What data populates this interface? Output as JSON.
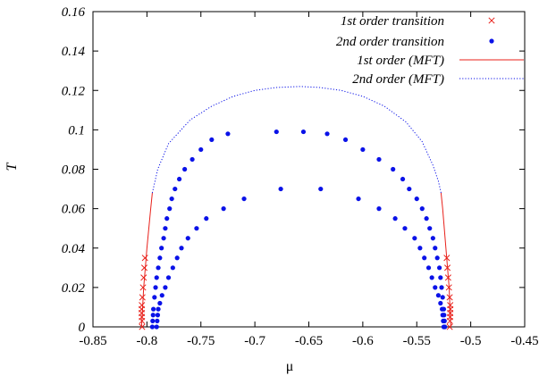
{
  "chart_data": {
    "type": "scatter",
    "xlabel": "μ",
    "ylabel": "T",
    "xlim": [
      -0.85,
      -0.45
    ],
    "ylim": [
      0,
      0.16
    ],
    "xticks": [
      -0.85,
      -0.8,
      -0.75,
      -0.7,
      -0.65,
      -0.6,
      -0.55,
      -0.5,
      -0.45
    ],
    "xtick_labels": [
      "-0.85",
      "-0.8",
      "-0.75",
      "-0.7",
      "-0.65",
      "-0.6",
      "-0.55",
      "-0.5",
      "-0.45"
    ],
    "yticks": [
      0,
      0.02,
      0.04,
      0.06,
      0.08,
      0.1,
      0.12,
      0.14,
      0.16
    ],
    "ytick_labels": [
      "0",
      "0.02",
      "0.04",
      "0.06",
      "0.08",
      "0.1",
      "0.12",
      "0.14",
      "0.16"
    ],
    "legend_position": "top-right",
    "series": [
      {
        "name": "1st order transition",
        "kind": "points",
        "marker": "x",
        "color": "#e8201a",
        "points": [
          [
            -0.8045,
            0.0
          ],
          [
            -0.8046,
            0.003
          ],
          [
            -0.8047,
            0.005
          ],
          [
            -0.8048,
            0.007
          ],
          [
            -0.8049,
            0.009
          ],
          [
            -0.8047,
            0.011
          ],
          [
            -0.8042,
            0.015
          ],
          [
            -0.8036,
            0.02
          ],
          [
            -0.803,
            0.025
          ],
          [
            -0.8024,
            0.03
          ],
          [
            -0.8018,
            0.035
          ],
          [
            -0.5195,
            0.0
          ],
          [
            -0.5193,
            0.003
          ],
          [
            -0.5191,
            0.005
          ],
          [
            -0.519,
            0.007
          ],
          [
            -0.5189,
            0.009
          ],
          [
            -0.519,
            0.011
          ],
          [
            -0.5195,
            0.015
          ],
          [
            -0.5202,
            0.02
          ],
          [
            -0.5209,
            0.025
          ],
          [
            -0.5216,
            0.03
          ],
          [
            -0.5222,
            0.035
          ]
        ]
      },
      {
        "name": "2nd order transition",
        "kind": "points",
        "marker": "circle",
        "color": "#0a12e8",
        "points": [
          [
            -0.795,
            0.0
          ],
          [
            -0.7947,
            0.003
          ],
          [
            -0.7943,
            0.006
          ],
          [
            -0.794,
            0.009
          ],
          [
            -0.793,
            0.015
          ],
          [
            -0.792,
            0.02
          ],
          [
            -0.791,
            0.025
          ],
          [
            -0.7895,
            0.03
          ],
          [
            -0.788,
            0.035
          ],
          [
            -0.7865,
            0.04
          ],
          [
            -0.7845,
            0.045
          ],
          [
            -0.783,
            0.05
          ],
          [
            -0.7815,
            0.055
          ],
          [
            -0.779,
            0.06
          ],
          [
            -0.777,
            0.065
          ],
          [
            -0.774,
            0.07
          ],
          [
            -0.77,
            0.075
          ],
          [
            -0.765,
            0.08
          ],
          [
            -0.758,
            0.085
          ],
          [
            -0.75,
            0.09
          ],
          [
            -0.74,
            0.095
          ],
          [
            -0.725,
            0.098
          ],
          [
            -0.68,
            0.099
          ],
          [
            -0.655,
            0.099
          ],
          [
            -0.633,
            0.098
          ],
          [
            -0.616,
            0.095
          ],
          [
            -0.6,
            0.09
          ],
          [
            -0.585,
            0.085
          ],
          [
            -0.572,
            0.08
          ],
          [
            -0.563,
            0.075
          ],
          [
            -0.557,
            0.07
          ],
          [
            -0.55,
            0.065
          ],
          [
            -0.545,
            0.06
          ],
          [
            -0.541,
            0.055
          ],
          [
            -0.538,
            0.05
          ],
          [
            -0.535,
            0.045
          ],
          [
            -0.533,
            0.04
          ],
          [
            -0.531,
            0.035
          ],
          [
            -0.529,
            0.03
          ],
          [
            -0.528,
            0.025
          ],
          [
            -0.527,
            0.02
          ],
          [
            -0.526,
            0.015
          ],
          [
            -0.525,
            0.009
          ],
          [
            -0.5247,
            0.006
          ],
          [
            -0.5243,
            0.003
          ],
          [
            -0.524,
            0.0
          ],
          [
            -0.791,
            0.0
          ],
          [
            -0.7905,
            0.003
          ],
          [
            -0.79,
            0.006
          ],
          [
            -0.7895,
            0.009
          ],
          [
            -0.788,
            0.012
          ],
          [
            -0.786,
            0.016
          ],
          [
            -0.783,
            0.02
          ],
          [
            -0.78,
            0.025
          ],
          [
            -0.776,
            0.03
          ],
          [
            -0.772,
            0.035
          ],
          [
            -0.768,
            0.04
          ],
          [
            -0.762,
            0.045
          ],
          [
            -0.754,
            0.05
          ],
          [
            -0.745,
            0.055
          ],
          [
            -0.729,
            0.06
          ],
          [
            -0.71,
            0.065
          ],
          [
            -0.676,
            0.07
          ],
          [
            -0.639,
            0.07
          ],
          [
            -0.604,
            0.065
          ],
          [
            -0.585,
            0.06
          ],
          [
            -0.57,
            0.055
          ],
          [
            -0.561,
            0.05
          ],
          [
            -0.552,
            0.045
          ],
          [
            -0.547,
            0.04
          ],
          [
            -0.543,
            0.035
          ],
          [
            -0.539,
            0.03
          ],
          [
            -0.536,
            0.025
          ],
          [
            -0.533,
            0.02
          ],
          [
            -0.53,
            0.016
          ],
          [
            -0.528,
            0.012
          ],
          [
            -0.5265,
            0.009
          ],
          [
            -0.526,
            0.006
          ],
          [
            -0.5255,
            0.003
          ],
          [
            -0.525,
            0.0
          ]
        ]
      },
      {
        "name": "1st order (MFT)",
        "kind": "line",
        "style": "solid",
        "color": "#e8201a",
        "segments": [
          [
            [
              -0.805,
              0.0
            ],
            [
              -0.803,
              0.02
            ],
            [
              -0.8,
              0.04
            ],
            [
              -0.7965,
              0.06
            ],
            [
              -0.795,
              0.068
            ]
          ],
          [
            [
              -0.5185,
              0.0
            ],
            [
              -0.52,
              0.02
            ],
            [
              -0.523,
              0.04
            ],
            [
              -0.526,
              0.06
            ],
            [
              -0.5275,
              0.068
            ]
          ]
        ]
      },
      {
        "name": "2nd order (MFT)",
        "kind": "line",
        "style": "dotted",
        "color": "#0a12e8",
        "segments": [
          [
            [
              -0.795,
              0.068
            ],
            [
              -0.79,
              0.08
            ],
            [
              -0.78,
              0.093
            ],
            [
              -0.76,
              0.105
            ],
            [
              -0.74,
              0.112
            ],
            [
              -0.72,
              0.117
            ],
            [
              -0.7,
              0.12
            ],
            [
              -0.68,
              0.1215
            ],
            [
              -0.658,
              0.122
            ],
            [
              -0.64,
              0.1215
            ],
            [
              -0.62,
              0.12
            ],
            [
              -0.6,
              0.117
            ],
            [
              -0.58,
              0.112
            ],
            [
              -0.56,
              0.104
            ],
            [
              -0.545,
              0.094
            ],
            [
              -0.535,
              0.082
            ],
            [
              -0.53,
              0.074
            ],
            [
              -0.5275,
              0.068
            ]
          ]
        ]
      }
    ]
  }
}
